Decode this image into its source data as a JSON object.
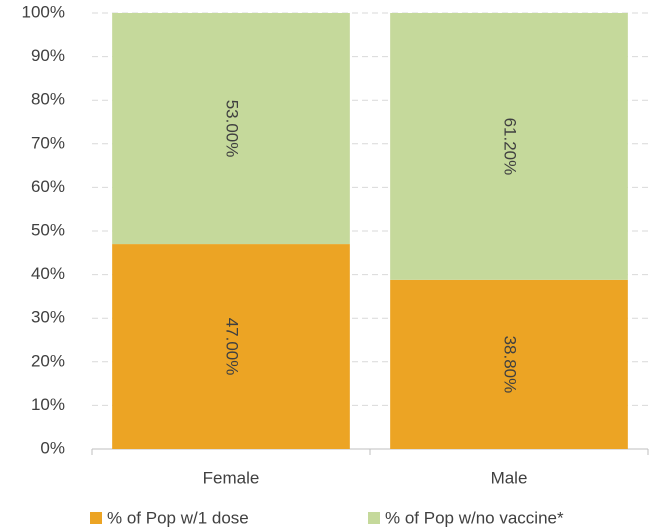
{
  "chart_data": {
    "type": "stacked_bar",
    "categories": [
      "Female",
      "Male"
    ],
    "series": [
      {
        "name": "% of Pop w/1 dose",
        "color": "#eca424",
        "values": [
          47,
          38.8
        ],
        "value_labels": [
          "47.00%",
          "38.80%"
        ]
      },
      {
        "name": "% of Pop w/no vaccine*",
        "color": "#c5d99b",
        "values": [
          53,
          61.2
        ],
        "value_labels": [
          "53.00%",
          "61.20%"
        ]
      }
    ],
    "ylim": [
      0,
      100
    ],
    "yticks": [
      {
        "value": 0,
        "label": "0%"
      },
      {
        "value": 10,
        "label": "10%"
      },
      {
        "value": 20,
        "label": "20%"
      },
      {
        "value": 30,
        "label": "30%"
      },
      {
        "value": 40,
        "label": "40%"
      },
      {
        "value": 50,
        "label": "50%"
      },
      {
        "value": 60,
        "label": "60%"
      },
      {
        "value": 70,
        "label": "70%"
      },
      {
        "value": 80,
        "label": "80%"
      },
      {
        "value": 90,
        "label": "90%"
      },
      {
        "value": 100,
        "label": "100%"
      }
    ],
    "grid": true,
    "legend": "bottom"
  }
}
